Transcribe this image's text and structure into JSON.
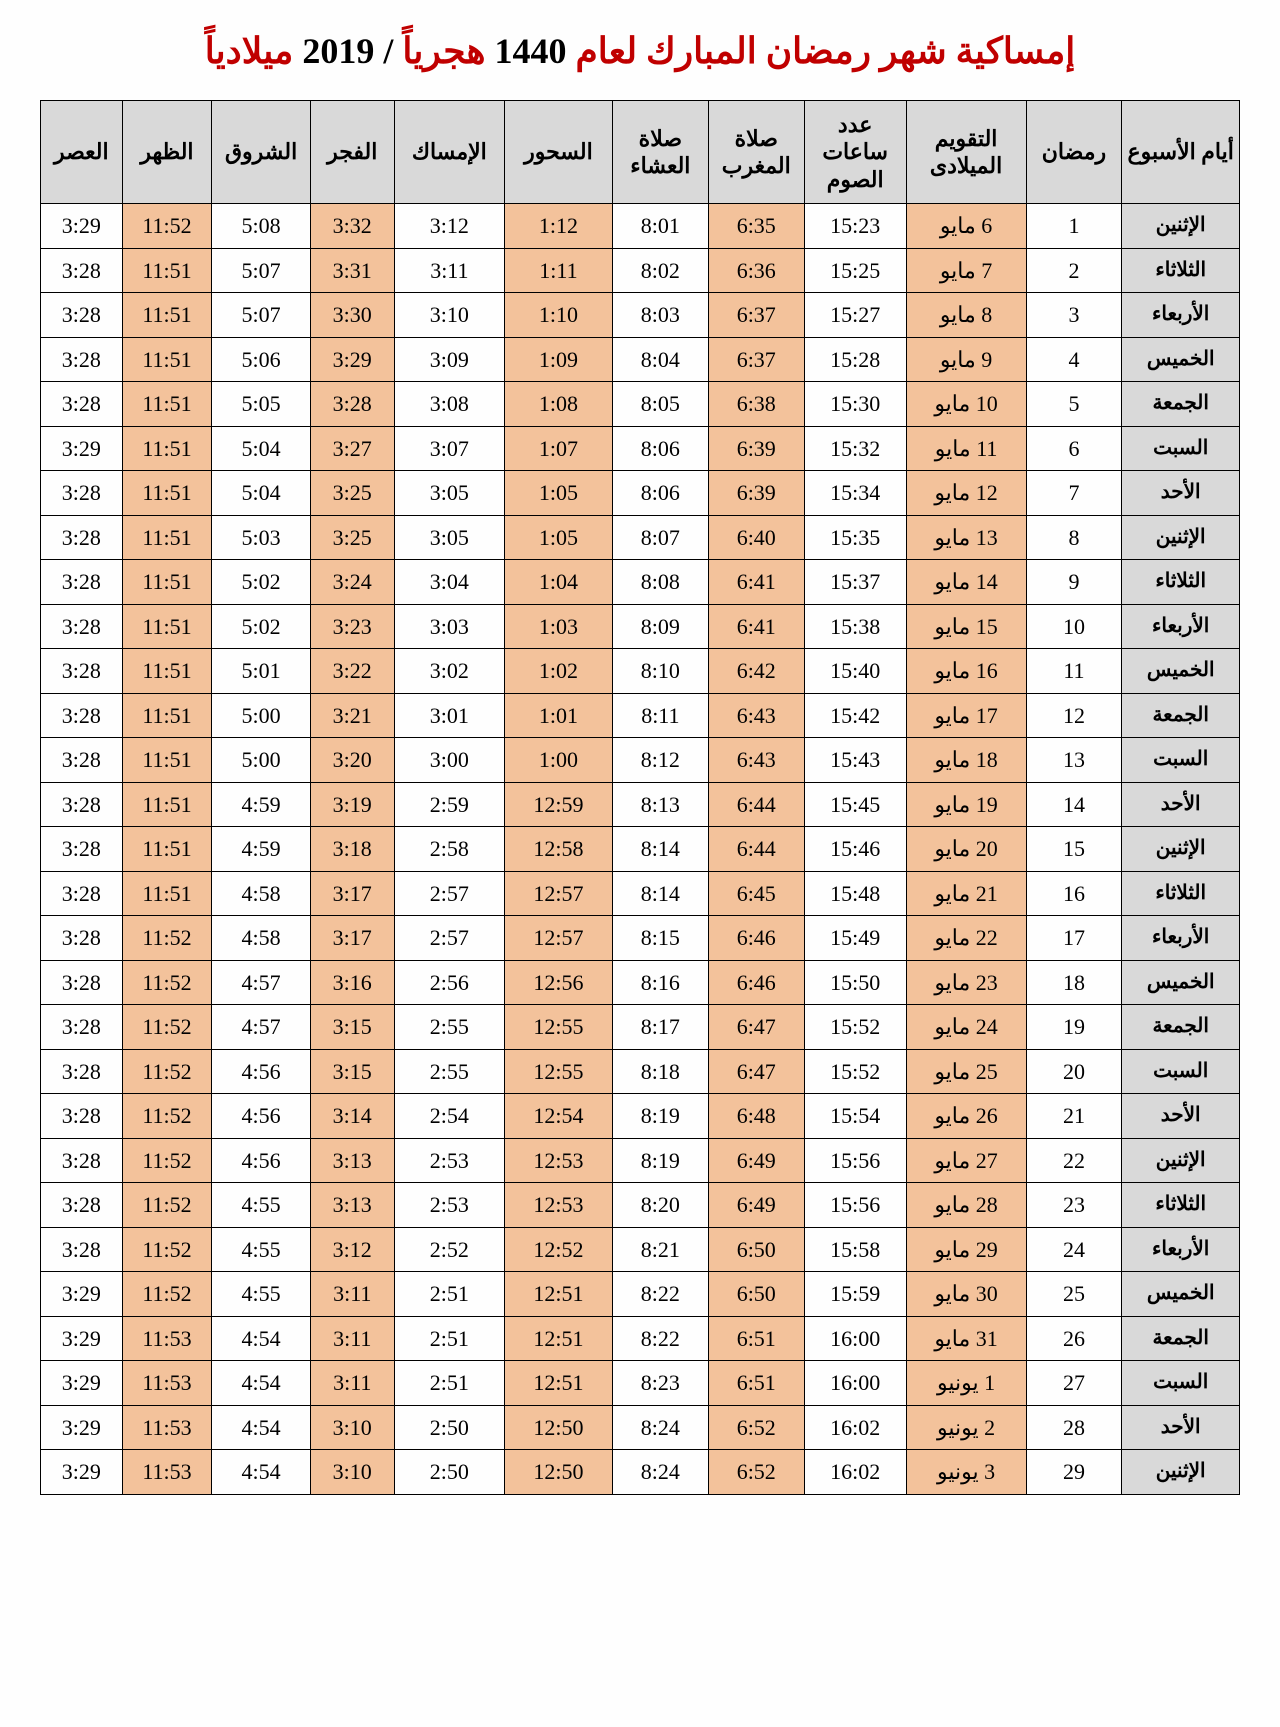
{
  "title": {
    "part1": "إمساكية شهر رمضان المبارك لعام ",
    "year_hijri": "1440",
    "part2": " هجرياً ",
    "slash": "/",
    "space": " ",
    "year_greg": "2019",
    "part3": " ميلادياً"
  },
  "colors": {
    "highlight": "#f3c29b",
    "header_bg": "#d9d9d9",
    "title_accent": "#c00000"
  },
  "columns": [
    "العصر",
    "الظهر",
    "الشروق",
    "الفجر",
    "الإمساك",
    "السحور",
    "صلاة العشاء",
    "صلاة المغرب",
    "عدد ساعات الصوم",
    "التقويم الميلادى",
    "رمضان",
    "أيام الأسبوع"
  ],
  "highlight_cols": [
    1,
    3,
    5,
    7,
    9
  ],
  "rows": [
    {
      "asr": "3:29",
      "dhuhr": "11:52",
      "sunrise": "5:08",
      "fajr": "3:32",
      "imsak": "3:12",
      "suhoor": "1:12",
      "isha": "8:01",
      "maghrib": "6:35",
      "hours": "15:23",
      "greg": "6 مايو",
      "ram": "1",
      "day": "الإثنين"
    },
    {
      "asr": "3:28",
      "dhuhr": "11:51",
      "sunrise": "5:07",
      "fajr": "3:31",
      "imsak": "3:11",
      "suhoor": "1:11",
      "isha": "8:02",
      "maghrib": "6:36",
      "hours": "15:25",
      "greg": "7 مايو",
      "ram": "2",
      "day": "الثلاثاء"
    },
    {
      "asr": "3:28",
      "dhuhr": "11:51",
      "sunrise": "5:07",
      "fajr": "3:30",
      "imsak": "3:10",
      "suhoor": "1:10",
      "isha": "8:03",
      "maghrib": "6:37",
      "hours": "15:27",
      "greg": "8 مايو",
      "ram": "3",
      "day": "الأربعاء"
    },
    {
      "asr": "3:28",
      "dhuhr": "11:51",
      "sunrise": "5:06",
      "fajr": "3:29",
      "imsak": "3:09",
      "suhoor": "1:09",
      "isha": "8:04",
      "maghrib": "6:37",
      "hours": "15:28",
      "greg": "9 مايو",
      "ram": "4",
      "day": "الخميس"
    },
    {
      "asr": "3:28",
      "dhuhr": "11:51",
      "sunrise": "5:05",
      "fajr": "3:28",
      "imsak": "3:08",
      "suhoor": "1:08",
      "isha": "8:05",
      "maghrib": "6:38",
      "hours": "15:30",
      "greg": "10 مايو",
      "ram": "5",
      "day": "الجمعة"
    },
    {
      "asr": "3:29",
      "dhuhr": "11:51",
      "sunrise": "5:04",
      "fajr": "3:27",
      "imsak": "3:07",
      "suhoor": "1:07",
      "isha": "8:06",
      "maghrib": "6:39",
      "hours": "15:32",
      "greg": "11 مايو",
      "ram": "6",
      "day": "السبت"
    },
    {
      "asr": "3:28",
      "dhuhr": "11:51",
      "sunrise": "5:04",
      "fajr": "3:25",
      "imsak": "3:05",
      "suhoor": "1:05",
      "isha": "8:06",
      "maghrib": "6:39",
      "hours": "15:34",
      "greg": "12 مايو",
      "ram": "7",
      "day": "الأحد"
    },
    {
      "asr": "3:28",
      "dhuhr": "11:51",
      "sunrise": "5:03",
      "fajr": "3:25",
      "imsak": "3:05",
      "suhoor": "1:05",
      "isha": "8:07",
      "maghrib": "6:40",
      "hours": "15:35",
      "greg": "13 مايو",
      "ram": "8",
      "day": "الإثنين"
    },
    {
      "asr": "3:28",
      "dhuhr": "11:51",
      "sunrise": "5:02",
      "fajr": "3:24",
      "imsak": "3:04",
      "suhoor": "1:04",
      "isha": "8:08",
      "maghrib": "6:41",
      "hours": "15:37",
      "greg": "14 مايو",
      "ram": "9",
      "day": "الثلاثاء"
    },
    {
      "asr": "3:28",
      "dhuhr": "11:51",
      "sunrise": "5:02",
      "fajr": "3:23",
      "imsak": "3:03",
      "suhoor": "1:03",
      "isha": "8:09",
      "maghrib": "6:41",
      "hours": "15:38",
      "greg": "15 مايو",
      "ram": "10",
      "day": "الأربعاء"
    },
    {
      "asr": "3:28",
      "dhuhr": "11:51",
      "sunrise": "5:01",
      "fajr": "3:22",
      "imsak": "3:02",
      "suhoor": "1:02",
      "isha": "8:10",
      "maghrib": "6:42",
      "hours": "15:40",
      "greg": "16 مايو",
      "ram": "11",
      "day": "الخميس"
    },
    {
      "asr": "3:28",
      "dhuhr": "11:51",
      "sunrise": "5:00",
      "fajr": "3:21",
      "imsak": "3:01",
      "suhoor": "1:01",
      "isha": "8:11",
      "maghrib": "6:43",
      "hours": "15:42",
      "greg": "17 مايو",
      "ram": "12",
      "day": "الجمعة"
    },
    {
      "asr": "3:28",
      "dhuhr": "11:51",
      "sunrise": "5:00",
      "fajr": "3:20",
      "imsak": "3:00",
      "suhoor": "1:00",
      "isha": "8:12",
      "maghrib": "6:43",
      "hours": "15:43",
      "greg": "18 مايو",
      "ram": "13",
      "day": "السبت"
    },
    {
      "asr": "3:28",
      "dhuhr": "11:51",
      "sunrise": "4:59",
      "fajr": "3:19",
      "imsak": "2:59",
      "suhoor": "12:59",
      "isha": "8:13",
      "maghrib": "6:44",
      "hours": "15:45",
      "greg": "19 مايو",
      "ram": "14",
      "day": "الأحد"
    },
    {
      "asr": "3:28",
      "dhuhr": "11:51",
      "sunrise": "4:59",
      "fajr": "3:18",
      "imsak": "2:58",
      "suhoor": "12:58",
      "isha": "8:14",
      "maghrib": "6:44",
      "hours": "15:46",
      "greg": "20 مايو",
      "ram": "15",
      "day": "الإثنين"
    },
    {
      "asr": "3:28",
      "dhuhr": "11:51",
      "sunrise": "4:58",
      "fajr": "3:17",
      "imsak": "2:57",
      "suhoor": "12:57",
      "isha": "8:14",
      "maghrib": "6:45",
      "hours": "15:48",
      "greg": "21 مايو",
      "ram": "16",
      "day": "الثلاثاء"
    },
    {
      "asr": "3:28",
      "dhuhr": "11:52",
      "sunrise": "4:58",
      "fajr": "3:17",
      "imsak": "2:57",
      "suhoor": "12:57",
      "isha": "8:15",
      "maghrib": "6:46",
      "hours": "15:49",
      "greg": "22 مايو",
      "ram": "17",
      "day": "الأربعاء"
    },
    {
      "asr": "3:28",
      "dhuhr": "11:52",
      "sunrise": "4:57",
      "fajr": "3:16",
      "imsak": "2:56",
      "suhoor": "12:56",
      "isha": "8:16",
      "maghrib": "6:46",
      "hours": "15:50",
      "greg": "23 مايو",
      "ram": "18",
      "day": "الخميس"
    },
    {
      "asr": "3:28",
      "dhuhr": "11:52",
      "sunrise": "4:57",
      "fajr": "3:15",
      "imsak": "2:55",
      "suhoor": "12:55",
      "isha": "8:17",
      "maghrib": "6:47",
      "hours": "15:52",
      "greg": "24 مايو",
      "ram": "19",
      "day": "الجمعة"
    },
    {
      "asr": "3:28",
      "dhuhr": "11:52",
      "sunrise": "4:56",
      "fajr": "3:15",
      "imsak": "2:55",
      "suhoor": "12:55",
      "isha": "8:18",
      "maghrib": "6:47",
      "hours": "15:52",
      "greg": "25 مايو",
      "ram": "20",
      "day": "السبت"
    },
    {
      "asr": "3:28",
      "dhuhr": "11:52",
      "sunrise": "4:56",
      "fajr": "3:14",
      "imsak": "2:54",
      "suhoor": "12:54",
      "isha": "8:19",
      "maghrib": "6:48",
      "hours": "15:54",
      "greg": "26 مايو",
      "ram": "21",
      "day": "الأحد"
    },
    {
      "asr": "3:28",
      "dhuhr": "11:52",
      "sunrise": "4:56",
      "fajr": "3:13",
      "imsak": "2:53",
      "suhoor": "12:53",
      "isha": "8:19",
      "maghrib": "6:49",
      "hours": "15:56",
      "greg": "27 مايو",
      "ram": "22",
      "day": "الإثنين"
    },
    {
      "asr": "3:28",
      "dhuhr": "11:52",
      "sunrise": "4:55",
      "fajr": "3:13",
      "imsak": "2:53",
      "suhoor": "12:53",
      "isha": "8:20",
      "maghrib": "6:49",
      "hours": "15:56",
      "greg": "28 مايو",
      "ram": "23",
      "day": "الثلاثاء"
    },
    {
      "asr": "3:28",
      "dhuhr": "11:52",
      "sunrise": "4:55",
      "fajr": "3:12",
      "imsak": "2:52",
      "suhoor": "12:52",
      "isha": "8:21",
      "maghrib": "6:50",
      "hours": "15:58",
      "greg": "29 مايو",
      "ram": "24",
      "day": "الأربعاء"
    },
    {
      "asr": "3:29",
      "dhuhr": "11:52",
      "sunrise": "4:55",
      "fajr": "3:11",
      "imsak": "2:51",
      "suhoor": "12:51",
      "isha": "8:22",
      "maghrib": "6:50",
      "hours": "15:59",
      "greg": "30 مايو",
      "ram": "25",
      "day": "الخميس"
    },
    {
      "asr": "3:29",
      "dhuhr": "11:53",
      "sunrise": "4:54",
      "fajr": "3:11",
      "imsak": "2:51",
      "suhoor": "12:51",
      "isha": "8:22",
      "maghrib": "6:51",
      "hours": "16:00",
      "greg": "31 مايو",
      "ram": "26",
      "day": "الجمعة"
    },
    {
      "asr": "3:29",
      "dhuhr": "11:53",
      "sunrise": "4:54",
      "fajr": "3:11",
      "imsak": "2:51",
      "suhoor": "12:51",
      "isha": "8:23",
      "maghrib": "6:51",
      "hours": "16:00",
      "greg": "1 يونيو",
      "ram": "27",
      "day": "السبت"
    },
    {
      "asr": "3:29",
      "dhuhr": "11:53",
      "sunrise": "4:54",
      "fajr": "3:10",
      "imsak": "2:50",
      "suhoor": "12:50",
      "isha": "8:24",
      "maghrib": "6:52",
      "hours": "16:02",
      "greg": "2 يونيو",
      "ram": "28",
      "day": "الأحد"
    },
    {
      "asr": "3:29",
      "dhuhr": "11:53",
      "sunrise": "4:54",
      "fajr": "3:10",
      "imsak": "2:50",
      "suhoor": "12:50",
      "isha": "8:24",
      "maghrib": "6:52",
      "hours": "16:02",
      "greg": "3 يونيو",
      "ram": "29",
      "day": "الإثنين"
    }
  ]
}
